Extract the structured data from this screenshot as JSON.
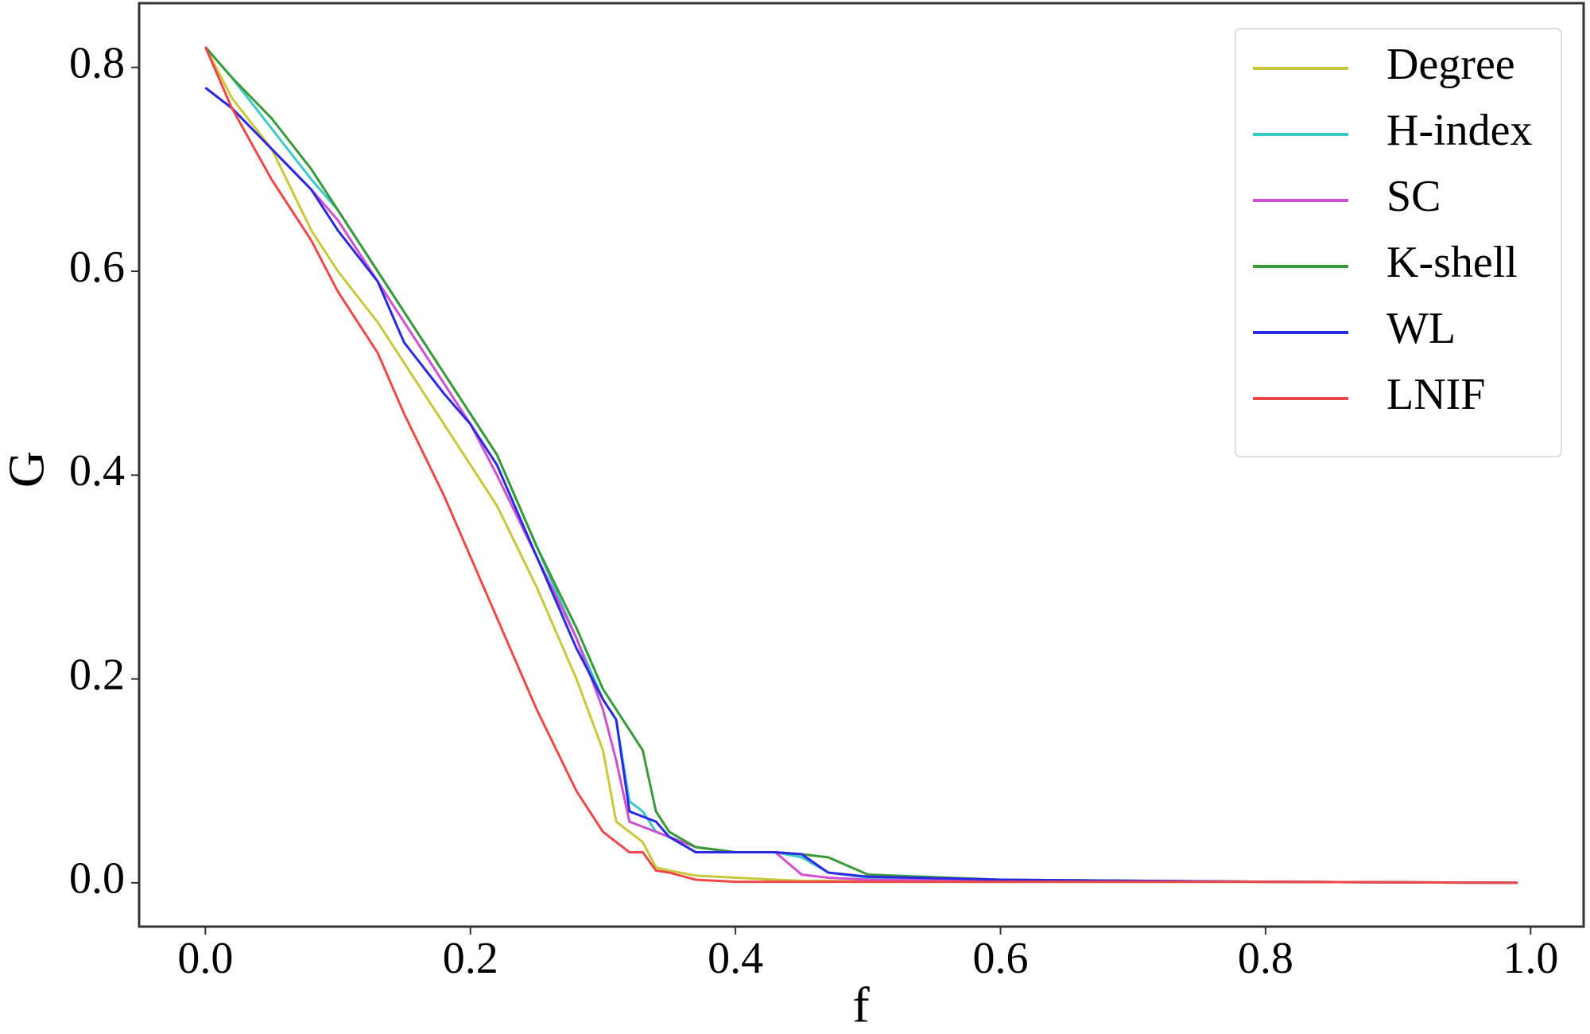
{
  "chart_data": {
    "type": "line",
    "xlabel": "f",
    "ylabel": "G",
    "x": [
      0,
      0.02,
      0.05,
      0.08,
      0.1,
      0.13,
      0.15,
      0.18,
      0.2,
      0.22,
      0.25,
      0.28,
      0.3,
      0.31,
      0.32,
      0.33,
      0.34,
      0.35,
      0.37,
      0.4,
      0.43,
      0.45,
      0.47,
      0.5,
      0.6,
      0.8,
      0.99
    ],
    "series": [
      {
        "name": "Degree",
        "color": "#c8c83a",
        "values": [
          0.82,
          0.77,
          0.72,
          0.64,
          0.6,
          0.55,
          0.51,
          0.45,
          0.41,
          0.37,
          0.29,
          0.2,
          0.13,
          0.06,
          0.05,
          0.04,
          0.015,
          0.012,
          0.007,
          0.005,
          0.003,
          0.002,
          0.002,
          0.001,
          0.001,
          0.001,
          0
        ]
      },
      {
        "name": "H-index",
        "color": "#3cc8c8",
        "values": [
          0.82,
          0.79,
          0.74,
          0.69,
          0.66,
          0.6,
          0.56,
          0.5,
          0.46,
          0.42,
          0.33,
          0.24,
          0.18,
          0.16,
          0.08,
          0.07,
          0.05,
          0.045,
          0.035,
          0.03,
          0.03,
          0.025,
          0.01,
          0.005,
          0.002,
          0.001,
          0
        ]
      },
      {
        "name": "SC",
        "color": "#d050d0",
        "values": [
          0.78,
          0.76,
          0.72,
          0.68,
          0.65,
          0.59,
          0.55,
          0.49,
          0.45,
          0.4,
          0.32,
          0.24,
          0.17,
          0.12,
          0.06,
          0.055,
          0.05,
          0.045,
          0.035,
          0.03,
          0.03,
          0.008,
          0.005,
          0.003,
          0.002,
          0.001,
          0
        ]
      },
      {
        "name": "K-shell",
        "color": "#3a9a3a",
        "values": [
          0.82,
          0.79,
          0.75,
          0.7,
          0.66,
          0.6,
          0.56,
          0.5,
          0.46,
          0.42,
          0.33,
          0.25,
          0.19,
          0.17,
          0.15,
          0.13,
          0.07,
          0.05,
          0.035,
          0.03,
          0.03,
          0.028,
          0.025,
          0.008,
          0.003,
          0.001,
          0
        ]
      },
      {
        "name": "WL",
        "color": "#2a2ae0",
        "values": [
          0.78,
          0.76,
          0.72,
          0.68,
          0.64,
          0.59,
          0.53,
          0.48,
          0.45,
          0.41,
          0.32,
          0.23,
          0.18,
          0.16,
          0.07,
          0.065,
          0.06,
          0.045,
          0.03,
          0.03,
          0.03,
          0.028,
          0.01,
          0.006,
          0.003,
          0.001,
          0
        ]
      },
      {
        "name": "LNIF",
        "color": "#f04848",
        "values": [
          0.82,
          0.76,
          0.69,
          0.63,
          0.58,
          0.52,
          0.46,
          0.38,
          0.32,
          0.26,
          0.17,
          0.09,
          0.05,
          0.04,
          0.03,
          0.03,
          0.012,
          0.01,
          0.003,
          0.001,
          0.001,
          0.001,
          0.001,
          0.001,
          0.001,
          0.001,
          0
        ]
      }
    ],
    "xlim": [
      -0.05,
      1.04
    ],
    "ylim": [
      -0.043,
      0.863
    ],
    "xticks": [
      {
        "value": 0,
        "label": "0.0"
      },
      0.2,
      0.4,
      0.6,
      0.8,
      {
        "value": 1,
        "label": "1.0"
      }
    ],
    "yticks": [
      {
        "value": 0,
        "label": "0.0"
      },
      0.2,
      0.4,
      0.6,
      0.8
    ],
    "legend": "upper right"
  }
}
